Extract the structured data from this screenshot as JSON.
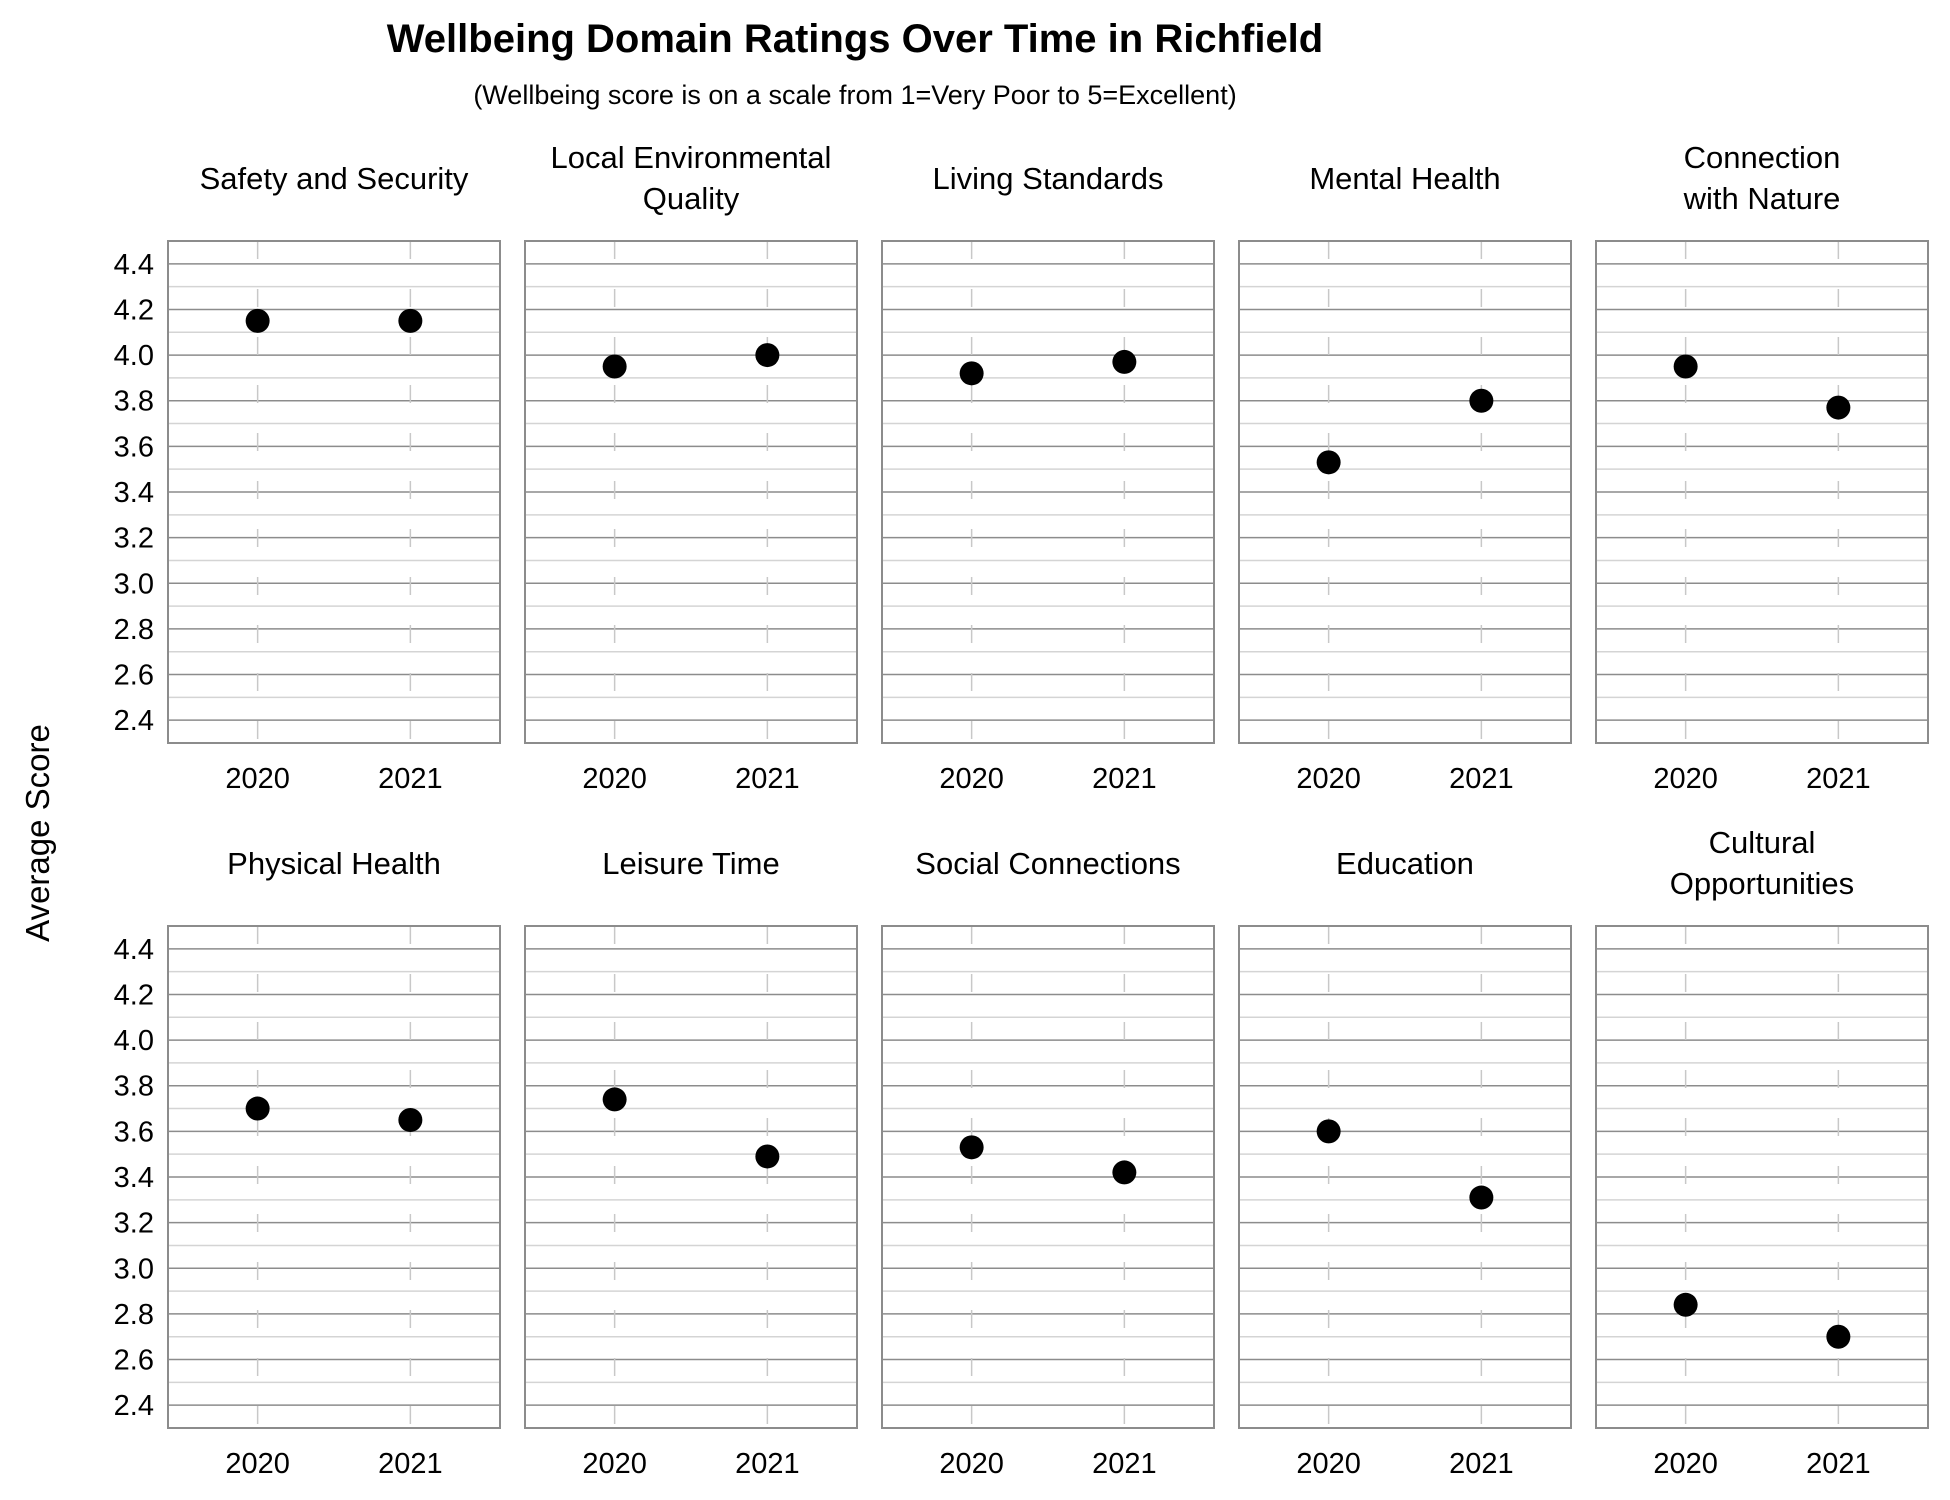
{
  "chart_data": {
    "type": "scatter",
    "title": "Wellbeing Domain Ratings Over Time in Richfield",
    "subtitle": "(Wellbeing score is on a scale from 1=Very Poor to 5=Excellent)",
    "ylabel": "Average Score",
    "xlabel": "",
    "ylim": [
      2.3,
      4.5
    ],
    "yticks": [
      "4.4",
      "4.2",
      "4.0",
      "3.8",
      "3.6",
      "3.4",
      "3.2",
      "3.0",
      "2.8",
      "2.6",
      "2.4"
    ],
    "x": [
      "2020",
      "2021"
    ],
    "grid": true,
    "marker_color": "#000000",
    "panels": [
      {
        "title": [
          "Safety and Security"
        ],
        "values": [
          4.15,
          4.15
        ]
      },
      {
        "title": [
          "Local Environmental",
          "Quality"
        ],
        "values": [
          3.95,
          4.0
        ]
      },
      {
        "title": [
          "Living Standards"
        ],
        "values": [
          3.92,
          3.97
        ]
      },
      {
        "title": [
          "Mental Health"
        ],
        "values": [
          3.53,
          3.8
        ]
      },
      {
        "title": [
          "Connection",
          "with Nature"
        ],
        "values": [
          3.95,
          3.77
        ]
      },
      {
        "title": [
          "Physical Health"
        ],
        "values": [
          3.7,
          3.65
        ]
      },
      {
        "title": [
          "Leisure Time"
        ],
        "values": [
          3.74,
          3.49
        ]
      },
      {
        "title": [
          "Social Connections"
        ],
        "values": [
          3.53,
          3.42
        ]
      },
      {
        "title": [
          "Education"
        ],
        "values": [
          3.6,
          3.31
        ]
      },
      {
        "title": [
          "Cultural",
          "Opportunities"
        ],
        "values": [
          2.84,
          2.7
        ]
      }
    ]
  }
}
